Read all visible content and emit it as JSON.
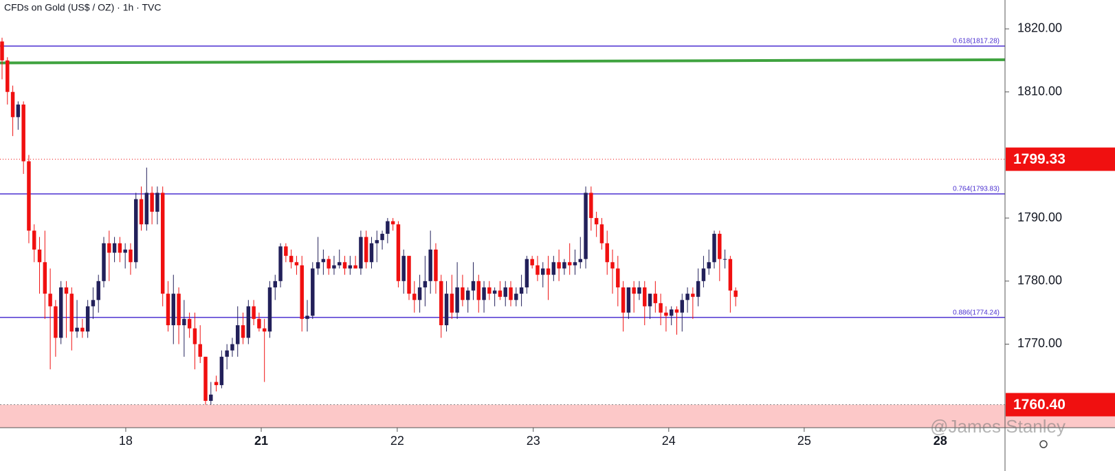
{
  "chart_data": {
    "type": "candlestick",
    "title": "CFDs on Gold (US$ / OZ) · 1h · TVC",
    "watermark": "@James Stanley",
    "up_color": "#22205a",
    "down_color": "#f01010",
    "ylim": [
      1756.75,
      1824.58
    ],
    "yticks": [
      {
        "value": 1820,
        "label": "1820.00"
      },
      {
        "value": 1810,
        "label": "1810.00"
      },
      {
        "value": 1790,
        "label": "1790.00"
      },
      {
        "value": 1780,
        "label": "1780.00"
      },
      {
        "value": 1770,
        "label": "1770.00"
      }
    ],
    "xlim": [
      -0.385,
      187.3
    ],
    "xticks": [
      {
        "value": 23.1,
        "label": "18"
      },
      {
        "value": 48.4,
        "label": "21",
        "bold": true
      },
      {
        "value": 73.8,
        "label": "22"
      },
      {
        "value": 99.2,
        "label": "23"
      },
      {
        "value": 124.5,
        "label": "24"
      },
      {
        "value": 149.8,
        "label": "25"
      },
      {
        "value": 175.2,
        "label": "28",
        "bold": true
      }
    ],
    "fib_levels": [
      {
        "value": 1817.28,
        "label": "0.618(1817.28)"
      },
      {
        "value": 1793.83,
        "label": "0.764(1793.83)"
      },
      {
        "value": 1774.24,
        "label": "0.886(1774.24)"
      }
    ],
    "fib_color": "#4a2fd0",
    "trendline": {
      "start": 1814.6,
      "end": 1815.1,
      "color": "#3fa33f"
    },
    "last_price": 1799.33,
    "support_zone": {
      "value": 1760.4,
      "label": "1760.40",
      "color": "#fcc8c8"
    },
    "candles": [
      [
        1818,
        1818.6,
        1812,
        1815
      ],
      [
        1815,
        1815.5,
        1808,
        1810
      ],
      [
        1810,
        1811,
        1803,
        1806
      ],
      [
        1806,
        1808.5,
        1804,
        1808
      ],
      [
        1808,
        1808.5,
        1797,
        1799
      ],
      [
        1799,
        1800,
        1786,
        1788
      ],
      [
        1788,
        1789,
        1783,
        1785
      ],
      [
        1785,
        1787,
        1778,
        1783
      ],
      [
        1783,
        1788,
        1774,
        1778
      ],
      [
        1778,
        1782,
        1766,
        1776
      ],
      [
        1776,
        1777,
        1768,
        1771
      ],
      [
        1771,
        1780,
        1770,
        1779
      ],
      [
        1779,
        1780,
        1771,
        1778
      ],
      [
        1778,
        1779,
        1769,
        1772
      ],
      [
        1772,
        1777,
        1771,
        1772.6
      ],
      [
        1772.6,
        1774,
        1771,
        1772
      ],
      [
        1772,
        1777,
        1771,
        1776
      ],
      [
        1776,
        1779,
        1774,
        1777
      ],
      [
        1777,
        1781,
        1775,
        1780
      ],
      [
        1780,
        1787,
        1779,
        1786
      ],
      [
        1786,
        1788,
        1780,
        1784.5
      ],
      [
        1784.5,
        1787,
        1783,
        1786
      ],
      [
        1786,
        1787,
        1783,
        1784.5
      ],
      [
        1784.5,
        1786,
        1782,
        1785
      ],
      [
        1785,
        1786,
        1781,
        1783
      ],
      [
        1783,
        1794,
        1782,
        1793
      ],
      [
        1793,
        1795,
        1788,
        1789
      ],
      [
        1789,
        1798,
        1788,
        1794
      ],
      [
        1794,
        1795,
        1789,
        1791
      ],
      [
        1791,
        1795,
        1789,
        1794
      ],
      [
        1794,
        1795,
        1776,
        1778
      ],
      [
        1778,
        1780,
        1772,
        1773
      ],
      [
        1773,
        1781,
        1770,
        1778
      ],
      [
        1778,
        1779,
        1770,
        1773
      ],
      [
        1773,
        1777,
        1768,
        1774
      ],
      [
        1774,
        1775,
        1771,
        1772.5
      ],
      [
        1772.5,
        1775,
        1766,
        1770
      ],
      [
        1770,
        1773,
        1767,
        1768
      ],
      [
        1768,
        1768,
        1760.4,
        1761
      ],
      [
        1761,
        1764,
        1760.4,
        1762
      ],
      [
        1764,
        1765,
        1762.5,
        1763.5
      ],
      [
        1763.5,
        1769,
        1763,
        1768
      ],
      [
        1768,
        1770,
        1766,
        1769
      ],
      [
        1769,
        1771,
        1768,
        1770
      ],
      [
        1770,
        1776,
        1768,
        1773
      ],
      [
        1773,
        1775,
        1770,
        1771
      ],
      [
        1771,
        1777,
        1770,
        1776
      ],
      [
        1776,
        1777,
        1773,
        1774
      ],
      [
        1774,
        1775,
        1772,
        1772.5
      ],
      [
        1772.5,
        1774,
        1764,
        1772
      ],
      [
        1772,
        1780,
        1771,
        1779
      ],
      [
        1779,
        1781,
        1777,
        1780
      ],
      [
        1780,
        1786,
        1779,
        1785.5
      ],
      [
        1785.5,
        1786,
        1783,
        1784
      ],
      [
        1784,
        1785,
        1782,
        1783
      ],
      [
        1783,
        1784,
        1781,
        1782.5
      ],
      [
        1782.5,
        1784,
        1772,
        1774
      ],
      [
        1774,
        1777,
        1772,
        1774.5
      ],
      [
        1774.5,
        1783,
        1774,
        1782
      ],
      [
        1782,
        1787,
        1781,
        1783
      ],
      [
        1783,
        1785,
        1781,
        1783.5
      ],
      [
        1783.5,
        1784,
        1781,
        1782
      ],
      [
        1782,
        1784,
        1781,
        1782.5
      ],
      [
        1782.5,
        1785,
        1782,
        1783
      ],
      [
        1783,
        1784,
        1781,
        1782
      ],
      [
        1782,
        1784,
        1781,
        1782.5
      ],
      [
        1782.5,
        1784,
        1782,
        1782
      ],
      [
        1782,
        1788,
        1781,
        1787
      ],
      [
        1787,
        1788,
        1782,
        1783
      ],
      [
        1783,
        1787,
        1782,
        1786
      ],
      [
        1786,
        1788,
        1783,
        1786.5
      ],
      [
        1786.5,
        1788,
        1785,
        1787.5
      ],
      [
        1787.5,
        1790,
        1786,
        1789.5
      ],
      [
        1789.5,
        1790,
        1788,
        1789
      ],
      [
        1789,
        1789.5,
        1779,
        1780
      ],
      [
        1780,
        1785,
        1778,
        1784
      ],
      [
        1784,
        1784,
        1777,
        1778
      ],
      [
        1778,
        1780,
        1775,
        1777
      ],
      [
        1777,
        1781,
        1775,
        1779
      ],
      [
        1779,
        1784,
        1776,
        1780
      ],
      [
        1780,
        1788,
        1778,
        1785
      ],
      [
        1785,
        1786,
        1778,
        1780
      ],
      [
        1780,
        1781,
        1771,
        1773
      ],
      [
        1773,
        1780,
        1772,
        1778
      ],
      [
        1778,
        1781,
        1774,
        1775
      ],
      [
        1775,
        1783,
        1774,
        1779
      ],
      [
        1779,
        1781,
        1776,
        1777
      ],
      [
        1777,
        1779,
        1775,
        1778.5
      ],
      [
        1778.5,
        1783,
        1777,
        1780
      ],
      [
        1780,
        1781,
        1775,
        1777
      ],
      [
        1777,
        1780,
        1775,
        1779
      ],
      [
        1779,
        1780,
        1777,
        1778
      ],
      [
        1778,
        1779,
        1776,
        1778.5
      ],
      [
        1778.5,
        1780,
        1777,
        1777.5
      ],
      [
        1777.5,
        1780,
        1776,
        1779
      ],
      [
        1779,
        1780,
        1776,
        1777
      ],
      [
        1777,
        1779,
        1776,
        1778
      ],
      [
        1778,
        1781,
        1776,
        1779
      ],
      [
        1779,
        1784,
        1778,
        1783.5
      ],
      [
        1783.5,
        1784,
        1782,
        1782.5
      ],
      [
        1782.5,
        1784,
        1780,
        1781
      ],
      [
        1781,
        1783,
        1779,
        1782
      ],
      [
        1782,
        1784,
        1777,
        1781
      ],
      [
        1781,
        1784,
        1780,
        1783
      ],
      [
        1783,
        1785,
        1780,
        1782
      ],
      [
        1782,
        1783.5,
        1781,
        1783
      ],
      [
        1783,
        1786,
        1781,
        1782.5
      ],
      [
        1782.5,
        1785,
        1781,
        1783
      ],
      [
        1783,
        1787,
        1782,
        1783.5
      ],
      [
        1783.5,
        1795,
        1782,
        1794
      ],
      [
        1794,
        1795,
        1788,
        1790
      ],
      [
        1790,
        1791,
        1787,
        1789
      ],
      [
        1789,
        1790,
        1785,
        1786
      ],
      [
        1786,
        1788,
        1781,
        1783
      ],
      [
        1783,
        1785,
        1778,
        1782
      ],
      [
        1782,
        1784,
        1776,
        1779
      ],
      [
        1779,
        1780,
        1772,
        1775
      ],
      [
        1775,
        1779,
        1774,
        1779
      ],
      [
        1779,
        1780,
        1775,
        1778
      ],
      [
        1778,
        1780,
        1777,
        1779
      ],
      [
        1779,
        1780,
        1773,
        1776
      ],
      [
        1776,
        1778,
        1774,
        1778
      ],
      [
        1778,
        1780,
        1775,
        1776.5
      ],
      [
        1776.5,
        1778,
        1773,
        1775
      ],
      [
        1775,
        1776,
        1772,
        1774.5
      ],
      [
        1774.5,
        1776,
        1773,
        1775.5
      ],
      [
        1775.5,
        1776,
        1771.5,
        1775
      ],
      [
        1775,
        1778,
        1772,
        1777
      ],
      [
        1777,
        1779,
        1775,
        1778
      ],
      [
        1778,
        1779,
        1774,
        1777.5
      ],
      [
        1777.5,
        1782,
        1776,
        1780
      ],
      [
        1780,
        1784,
        1779,
        1782
      ],
      [
        1782,
        1785,
        1781,
        1783
      ],
      [
        1783,
        1788,
        1782,
        1787.5
      ],
      [
        1787.5,
        1788,
        1780,
        1783.5
      ],
      [
        1783.5,
        1785,
        1782,
        1783.5
      ],
      [
        1783.5,
        1784,
        1775,
        1778.5
      ],
      [
        1778.5,
        1779,
        1776,
        1777.5
      ]
    ]
  }
}
